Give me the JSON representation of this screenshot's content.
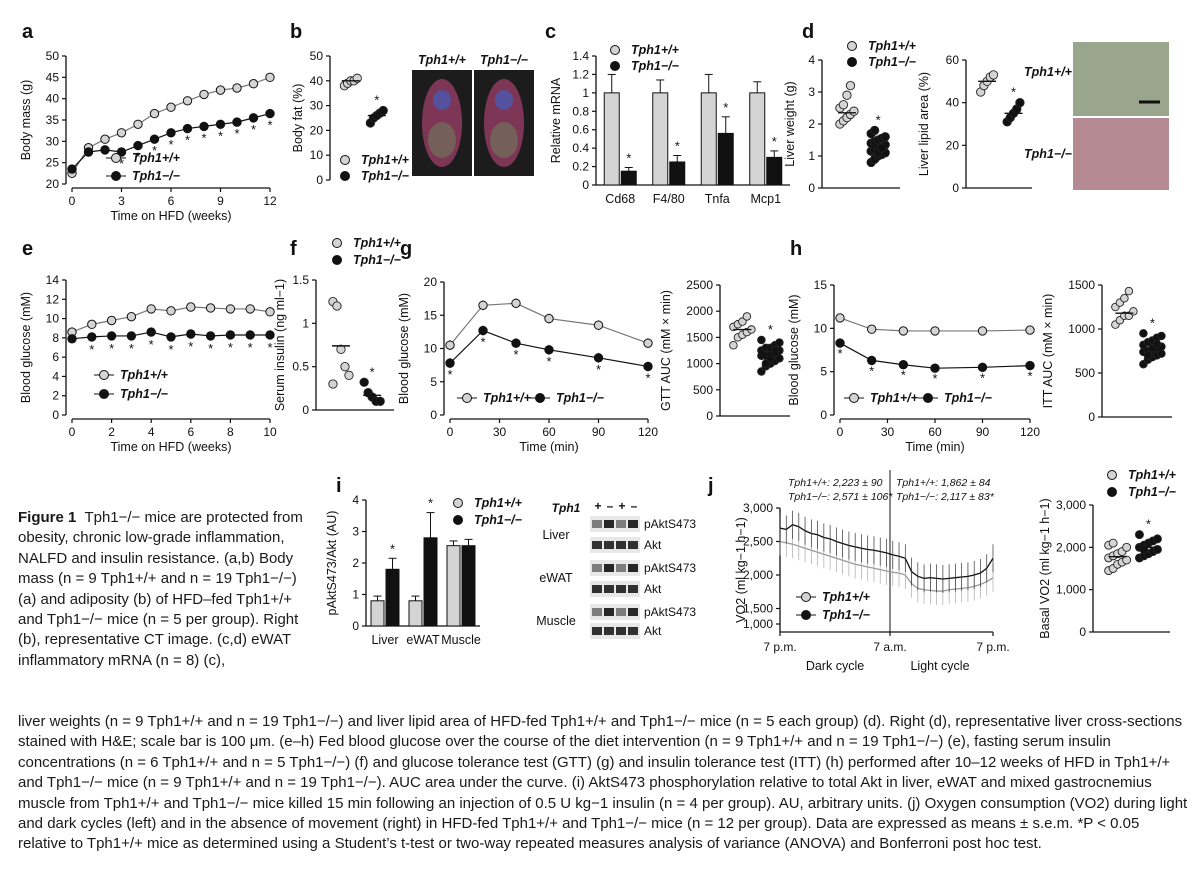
{
  "figure_number": "Figure 1",
  "caption_title": "Tph1−/− mice are protected from obesity, chronic low-grade inflammation, NALFD and insulin resistance.",
  "caption_lines": [
    "(a,b) Body mass (n = 9 Tph1+/+ and n = 19 Tph1−/−) (a) and adiposity (b) of HFD–fed Tph1+/+ and Tph1−/− mice (n = 5 per group). Right (b), representative CT image. (c,d) eWAT inflammatory mRNA (n = 8) (c),",
    "liver weights (n = 9 Tph1+/+ and n = 19 Tph1−/−) and liver lipid area of HFD-fed Tph1+/+ and Tph1−/− mice (n = 5 each group) (d). Right (d), representative liver cross-sections stained with H&E; scale bar is 100 μm. (e–h) Fed blood glucose over the course of the diet intervention (n = 9 Tph1+/+ and n = 19 Tph1−/−) (e), fasting serum insulin concentrations (n = 6 Tph1+/+ and n = 5 Tph1−/−) (f) and glucose tolerance test (GTT) (g) and insulin tolerance test (ITT) (h) performed after 10–12 weeks of HFD in Tph1+/+ and Tph1−/− mice (n = 9 Tph1+/+ and n = 19 Tph1−/−). AUC area under the curve. (i) AktS473 phosphorylation relative to total Akt in liver, eWAT and mixed gastrocnemius muscle from Tph1+/+ and Tph1−/− mice killed 15 min following an injection of 0.5 U kg−1 insulin (n = 4 per group). AU, arbitrary units. (j) Oxygen consumption (VO2) during light and dark cycles (left) and in the absence of movement (right) in HFD-fed Tph1+/+ and Tph1−/− mice (n = 12 per group). Data are expressed as means ± s.e.m. *P < 0.05 relative to Tph1+/+ mice as determined using a Student’s t-test or two-way repeated measures analysis of variance (ANOVA) and Bonferroni post hoc test."
  ],
  "legend": {
    "wt": "Tph1+/+",
    "ko": "Tph1−/−",
    "star": "*"
  },
  "colors": {
    "wt_fill": "#d4d4d4",
    "ko_fill": "#111111",
    "axis": "#111111",
    "ct_body": "#8a3a5e",
    "ct_bg": "#1c1c1c",
    "he_top": "#9aa58e",
    "he_bottom": "#b58a93"
  },
  "chart_data": [
    {
      "panel": "a",
      "type": "line",
      "xlabel": "Time on HFD (weeks)",
      "ylabel": "Body mass (g)",
      "xlim": [
        0,
        12
      ],
      "ylim": [
        20,
        50
      ],
      "xticks": [
        0,
        3,
        6,
        9,
        12
      ],
      "yticks": [
        20,
        25,
        30,
        35,
        40,
        45,
        50
      ],
      "x": [
        0,
        1,
        2,
        3,
        4,
        5,
        6,
        7,
        8,
        9,
        10,
        11,
        12
      ],
      "series": [
        {
          "name": "Tph1+/+",
          "values": [
            22.5,
            28.5,
            30.5,
            32,
            34,
            36.5,
            38,
            39.5,
            41,
            42,
            42.5,
            43.5,
            45
          ]
        },
        {
          "name": "Tph1−/−",
          "values": [
            23.5,
            27.5,
            28,
            27.5,
            29,
            30.5,
            32,
            33,
            33.5,
            34,
            34.5,
            35.5,
            36.5
          ]
        }
      ],
      "sig_x": [
        3,
        4,
        5,
        6,
        7,
        8,
        9,
        10,
        11,
        12
      ]
    },
    {
      "panel": "b",
      "type": "scatter",
      "ylabel": "Body fat (%)",
      "ylim": [
        0,
        50
      ],
      "yticks": [
        0,
        10,
        20,
        30,
        40,
        50
      ],
      "groups": [
        {
          "name": "Tph1+/+",
          "values": [
            38,
            39,
            40,
            40,
            41
          ],
          "mean": 40
        },
        {
          "name": "Tph1−/−",
          "values": [
            23,
            25,
            26,
            27,
            28
          ],
          "mean": 26
        }
      ],
      "image_labels": [
        "Tph1+/+",
        "Tph1−/−"
      ]
    },
    {
      "panel": "c",
      "type": "bar",
      "ylabel": "Relative mRNA",
      "ylim": [
        0,
        1.4
      ],
      "yticks": [
        0,
        0.2,
        0.4,
        0.6,
        0.8,
        1.0,
        1.2,
        1.4
      ],
      "categories": [
        "Cd68",
        "F4/80",
        "Tnfa",
        "Mcp1"
      ],
      "series": [
        {
          "name": "Tph1+/+",
          "values": [
            1.0,
            1.0,
            1.0,
            1.0
          ],
          "errors": [
            0.2,
            0.14,
            0.2,
            0.12
          ]
        },
        {
          "name": "Tph1−/−",
          "values": [
            0.15,
            0.25,
            0.56,
            0.3
          ],
          "errors": [
            0.04,
            0.07,
            0.18,
            0.07
          ]
        }
      ]
    },
    {
      "panel": "d1",
      "type": "scatter",
      "ylabel": "Liver weight (g)",
      "ylim": [
        0,
        4
      ],
      "yticks": [
        0,
        1,
        2,
        3,
        4
      ],
      "groups": [
        {
          "name": "Tph1+/+",
          "values": [
            2.0,
            2.1,
            2.2,
            2.3,
            2.4,
            2.5,
            2.6,
            2.9,
            3.2
          ],
          "mean": 2.35
        },
        {
          "name": "Tph1−/−",
          "values": [
            0.8,
            0.9,
            1.0,
            1.05,
            1.1,
            1.15,
            1.2,
            1.25,
            1.3,
            1.35,
            1.4,
            1.45,
            1.5,
            1.55,
            1.6,
            1.7,
            1.8,
            1.1,
            1.25
          ],
          "mean": 1.3
        }
      ]
    },
    {
      "panel": "d2",
      "type": "scatter",
      "ylabel": "Liver lipid area (%)",
      "ylim": [
        0,
        60
      ],
      "yticks": [
        0,
        20,
        40,
        60
      ],
      "groups": [
        {
          "name": "Tph1+/+",
          "values": [
            45,
            48,
            50,
            52,
            53
          ],
          "mean": 50
        },
        {
          "name": "Tph1−/−",
          "values": [
            31,
            33,
            35,
            37,
            40
          ],
          "mean": 35
        }
      ],
      "image_labels": [
        "Tph1+/+",
        "Tph1−/−"
      ]
    },
    {
      "panel": "e",
      "type": "line",
      "xlabel": "Time on HFD (weeks)",
      "ylabel": "Blood glucose (mM)",
      "xlim": [
        0,
        10
      ],
      "ylim": [
        0,
        14
      ],
      "xticks": [
        0,
        2,
        4,
        6,
        8,
        10
      ],
      "yticks": [
        0,
        2,
        4,
        6,
        8,
        10,
        12,
        14
      ],
      "x": [
        0,
        1,
        2,
        3,
        4,
        5,
        6,
        7,
        8,
        9,
        10
      ],
      "series": [
        {
          "name": "Tph1+/+",
          "values": [
            8.6,
            9.4,
            9.8,
            10.2,
            11,
            10.8,
            11.2,
            11.1,
            11,
            11,
            10.7
          ]
        },
        {
          "name": "Tph1−/−",
          "values": [
            7.9,
            8.1,
            8.2,
            8.2,
            8.6,
            8.1,
            8.4,
            8.2,
            8.3,
            8.3,
            8.3
          ]
        }
      ],
      "sig_x": [
        1,
        2,
        3,
        4,
        5,
        6,
        7,
        8,
        9,
        10
      ]
    },
    {
      "panel": "f",
      "type": "scatter",
      "ylabel": "Serum insulin (ng ml−1)",
      "ylim": [
        0,
        1.5
      ],
      "yticks": [
        0,
        0.5,
        1.0,
        1.5
      ],
      "groups": [
        {
          "name": "Tph1+/+",
          "values": [
            1.25,
            1.2,
            0.7,
            0.5,
            0.4,
            0.3
          ],
          "mean": 0.74
        },
        {
          "name": "Tph1−/−",
          "values": [
            0.32,
            0.2,
            0.15,
            0.1,
            0.1
          ],
          "mean": 0.17
        }
      ]
    },
    {
      "panel": "g",
      "type": "line",
      "xlabel": "Time (min)",
      "ylabel": "Blood glucose (mM)",
      "xlim": [
        0,
        120
      ],
      "ylim": [
        0,
        20
      ],
      "xticks": [
        0,
        30,
        60,
        90,
        120
      ],
      "yticks": [
        0,
        5,
        10,
        15,
        20
      ],
      "x": [
        0,
        20,
        40,
        60,
        90,
        120
      ],
      "series": [
        {
          "name": "Tph1+/+",
          "values": [
            10.5,
            16.5,
            16.8,
            14.5,
            13.5,
            10.8
          ]
        },
        {
          "name": "Tph1−/−",
          "values": [
            7.8,
            12.7,
            10.8,
            9.8,
            8.6,
            7.3
          ]
        }
      ],
      "sig_x": [
        0,
        20,
        40,
        60,
        90,
        120
      ]
    },
    {
      "panel": "g_auc",
      "type": "scatter",
      "ylabel": "GTT AUC (mM × min)",
      "ylim": [
        0,
        2500
      ],
      "yticks": [
        0,
        500,
        1000,
        1500,
        2000,
        2500
      ],
      "groups": [
        {
          "name": "Tph1+/+",
          "values": [
            1350,
            1500,
            1550,
            1600,
            1650,
            1700,
            1750,
            1800,
            1900
          ],
          "mean": 1650
        },
        {
          "name": "Tph1−/−",
          "values": [
            850,
            950,
            1000,
            1050,
            1100,
            1150,
            1150,
            1200,
            1200,
            1250,
            1250,
            1300,
            1300,
            1350,
            1400,
            1450,
            1000,
            1100,
            1250
          ],
          "mean": 1180
        }
      ]
    },
    {
      "panel": "h",
      "type": "line",
      "xlabel": "Time (min)",
      "ylabel": "Blood glucose (mM)",
      "xlim": [
        0,
        120
      ],
      "ylim": [
        0,
        15
      ],
      "xticks": [
        0,
        30,
        60,
        90,
        120
      ],
      "yticks": [
        0,
        5,
        10,
        15
      ],
      "x": [
        0,
        20,
        40,
        60,
        90,
        120
      ],
      "series": [
        {
          "name": "Tph1+/+",
          "values": [
            11.2,
            9.9,
            9.7,
            9.7,
            9.7,
            9.8
          ]
        },
        {
          "name": "Tph1−/−",
          "values": [
            8.3,
            6.3,
            5.8,
            5.4,
            5.5,
            5.7
          ]
        }
      ],
      "sig_x": [
        0,
        20,
        40,
        60,
        90,
        120
      ]
    },
    {
      "panel": "h_auc",
      "type": "scatter",
      "ylabel": "ITT AUC (mM × min)",
      "ylim": [
        0,
        1500
      ],
      "yticks": [
        0,
        500,
        1000,
        1500
      ],
      "groups": [
        {
          "name": "Tph1+/+",
          "values": [
            1050,
            1100,
            1150,
            1150,
            1200,
            1250,
            1300,
            1350,
            1430
          ],
          "mean": 1180
        },
        {
          "name": "Tph1−/−",
          "values": [
            600,
            650,
            680,
            700,
            720,
            740,
            750,
            760,
            780,
            800,
            820,
            850,
            870,
            900,
            920,
            950,
            700,
            780,
            830
          ],
          "mean": 770
        }
      ]
    },
    {
      "panel": "i",
      "type": "bar",
      "ylabel": "pAktS473/Akt (AU)",
      "ylim": [
        0,
        4
      ],
      "yticks": [
        0,
        1,
        2,
        3,
        4
      ],
      "categories": [
        "Liver",
        "eWAT",
        "Muscle"
      ],
      "series": [
        {
          "name": "Tph1+/+",
          "values": [
            0.8,
            0.8,
            2.55
          ],
          "errors": [
            0.15,
            0.15,
            0.15
          ]
        },
        {
          "name": "Tph1−/−",
          "values": [
            1.8,
            2.8,
            2.55
          ],
          "errors": [
            0.35,
            0.8,
            0.2
          ]
        }
      ],
      "blot_header": "Tph1",
      "blot_lanes": [
        "+",
        "–",
        "+",
        "–"
      ],
      "blot_tissues": [
        "Liver",
        "eWAT",
        "Muscle"
      ],
      "blot_bands": [
        "pAktS473",
        "Akt"
      ]
    },
    {
      "panel": "j",
      "type": "line",
      "ylabel": "VO2 (ml kg−1 h−1)",
      "ylim": [
        1000,
        3000
      ],
      "yticks": [
        1000,
        1500,
        2000,
        2500,
        3000
      ],
      "ytick_labels": [
        "1,000",
        "1,500",
        "2,000",
        "2,500",
        "3,000"
      ],
      "xtick_labels": [
        "7 p.m.",
        "7 a.m.",
        "7 p.m."
      ],
      "cycle_labels": [
        "Dark cycle",
        "Light cycle"
      ],
      "annotations": {
        "dark_wt": "Tph1+/+: 2,223 ± 90",
        "dark_ko": "Tph1−/−: 2,571 ± 106*",
        "light_wt": "Tph1+/+: 1,862 ± 84",
        "light_ko": "Tph1−/−: 2,117 ± 83*"
      },
      "series": [
        {
          "name": "Tph1+/+",
          "values": [
            2500,
            2480,
            2460,
            2430,
            2400,
            2370,
            2340,
            2310,
            2280,
            2250,
            2220,
            2190,
            2160,
            2140,
            2120,
            2100,
            2080,
            2060,
            2040,
            2030,
            2000,
            1870,
            1800,
            1780,
            1770,
            1760,
            1760,
            1780,
            1790,
            1800,
            1810,
            1830,
            1860,
            1900,
            1960
          ]
        },
        {
          "name": "Tph1−/−",
          "values": [
            2700,
            2680,
            2750,
            2720,
            2660,
            2620,
            2600,
            2560,
            2540,
            2500,
            2470,
            2440,
            2420,
            2400,
            2380,
            2370,
            2350,
            2330,
            2300,
            2280,
            2250,
            2050,
            1980,
            1950,
            1960,
            1950,
            1940,
            1950,
            1960,
            1970,
            1980,
            2000,
            2030,
            2100,
            2250
          ]
        }
      ]
    },
    {
      "panel": "j_basal",
      "type": "scatter",
      "ylabel": "Basal VO2 (ml kg−1 h−1)",
      "ylim": [
        0,
        3000
      ],
      "yticks": [
        0,
        1000,
        2000,
        3000
      ],
      "ytick_labels": [
        "0",
        "1,000",
        "2,000",
        "3,000"
      ],
      "groups": [
        {
          "name": "Tph1+/+",
          "values": [
            1450,
            1500,
            1600,
            1650,
            1700,
            1750,
            1800,
            1850,
            1900,
            2000,
            2050,
            2100
          ],
          "mean": 1780
        },
        {
          "name": "Tph1−/−",
          "values": [
            1750,
            1800,
            1850,
            1900,
            1950,
            2000,
            2050,
            2100,
            2150,
            2200,
            2300,
            1950
          ],
          "mean": 2000
        }
      ]
    }
  ]
}
